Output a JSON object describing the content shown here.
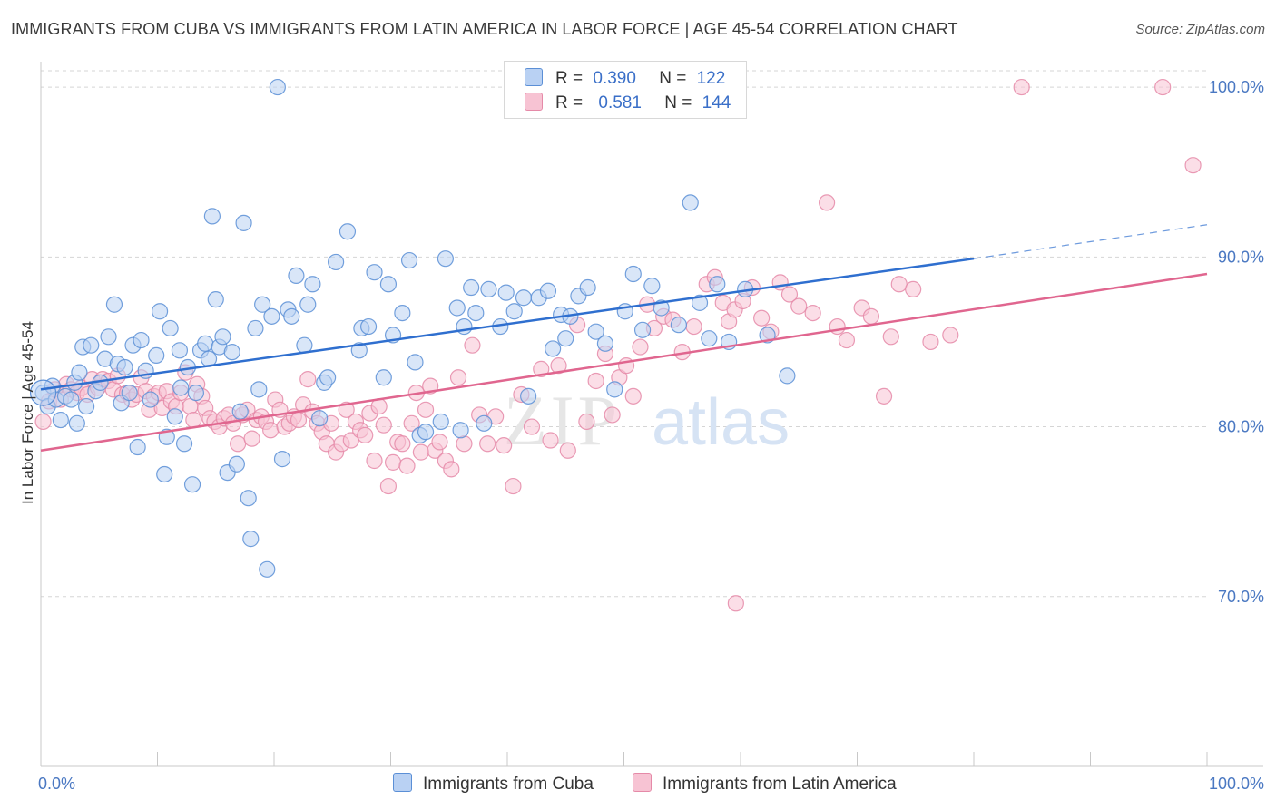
{
  "title": "IMMIGRANTS FROM CUBA VS IMMIGRANTS FROM LATIN AMERICA IN LABOR FORCE | AGE 45-54 CORRELATION CHART",
  "source": "Source: ZipAtlas.com",
  "colors": {
    "cuba_fill": "#b9d1f3",
    "cuba_stroke": "#5b8fd6",
    "cuba_line": "#2f6fcf",
    "latam_fill": "#f7c3d3",
    "latam_stroke": "#e58aa8",
    "latam_line": "#e0668f",
    "tick_text": "#4a78c2",
    "grid": "#d5d5d5"
  },
  "legend": {
    "rows": [
      {
        "r_label": "R =",
        "r_value": "0.390",
        "n_label": "N =",
        "n_value": "122"
      },
      {
        "r_label": "R =",
        "r_value": "0.581",
        "n_label": "N =",
        "n_value": "144"
      }
    ]
  },
  "chart_data": {
    "type": "scatter",
    "title": "IMMIGRANTS FROM CUBA VS IMMIGRANTS FROM LATIN AMERICA IN LABOR FORCE | AGE 45-54 CORRELATION CHART",
    "xlabel": "",
    "ylabel": "In Labor Force | Age 45-54",
    "xlim": [
      0,
      100
    ],
    "ylim": [
      60,
      101.5
    ],
    "x_tick_labels": [
      "0.0%",
      "100.0%"
    ],
    "y_ticks": [
      {
        "value": 70,
        "label": "70.0%"
      },
      {
        "value": 80,
        "label": "80.0%"
      },
      {
        "value": 90,
        "label": "90.0%"
      },
      {
        "value": 100,
        "label": "100.0%"
      }
    ],
    "grid": true,
    "legend_position": "top-center",
    "series": [
      {
        "name": "Immigrants from Cuba",
        "r": 0.39,
        "n": 122,
        "trend": {
          "x0": 0,
          "y0": 82.2,
          "x1": 80,
          "y1": 89.9,
          "dashed_to_x": 100,
          "dashed_to_y": 91.9
        },
        "points": [
          [
            0.2,
            82.0
          ],
          [
            0.6,
            81.2
          ],
          [
            1.0,
            82.4
          ],
          [
            1.3,
            81.6
          ],
          [
            1.7,
            80.4
          ],
          [
            2.1,
            81.8
          ],
          [
            2.6,
            81.6
          ],
          [
            2.9,
            82.6
          ],
          [
            3.1,
            80.2
          ],
          [
            3.3,
            83.2
          ],
          [
            3.6,
            84.7
          ],
          [
            3.9,
            81.2
          ],
          [
            4.3,
            84.8
          ],
          [
            4.7,
            82.1
          ],
          [
            5.1,
            82.6
          ],
          [
            5.5,
            84.0
          ],
          [
            5.8,
            85.3
          ],
          [
            6.3,
            87.2
          ],
          [
            6.6,
            83.7
          ],
          [
            6.9,
            81.4
          ],
          [
            7.2,
            83.5
          ],
          [
            7.6,
            82.0
          ],
          [
            7.9,
            84.8
          ],
          [
            8.3,
            78.8
          ],
          [
            8.6,
            85.1
          ],
          [
            9.0,
            83.3
          ],
          [
            9.4,
            81.6
          ],
          [
            9.9,
            84.2
          ],
          [
            10.2,
            86.8
          ],
          [
            10.6,
            77.2
          ],
          [
            10.8,
            79.4
          ],
          [
            11.1,
            85.8
          ],
          [
            11.5,
            80.6
          ],
          [
            11.9,
            84.5
          ],
          [
            12.3,
            79.0
          ],
          [
            12.6,
            83.5
          ],
          [
            13.0,
            76.6
          ],
          [
            13.3,
            82.0
          ],
          [
            13.7,
            84.5
          ],
          [
            14.1,
            84.9
          ],
          [
            14.4,
            84.0
          ],
          [
            14.7,
            92.4
          ],
          [
            15.0,
            87.5
          ],
          [
            15.3,
            84.7
          ],
          [
            15.6,
            85.3
          ],
          [
            16.0,
            77.3
          ],
          [
            16.4,
            84.4
          ],
          [
            16.8,
            77.8
          ],
          [
            17.1,
            80.9
          ],
          [
            17.4,
            92.0
          ],
          [
            17.8,
            75.8
          ],
          [
            18.0,
            73.4
          ],
          [
            18.4,
            85.8
          ],
          [
            18.7,
            82.2
          ],
          [
            19.0,
            87.2
          ],
          [
            19.4,
            71.6
          ],
          [
            19.8,
            86.5
          ],
          [
            20.3,
            100.0
          ],
          [
            20.7,
            78.1
          ],
          [
            21.2,
            86.9
          ],
          [
            21.5,
            86.5
          ],
          [
            21.9,
            88.9
          ],
          [
            22.6,
            84.8
          ],
          [
            22.9,
            87.2
          ],
          [
            23.3,
            88.4
          ],
          [
            23.9,
            80.5
          ],
          [
            24.3,
            82.6
          ],
          [
            24.6,
            82.9
          ],
          [
            25.3,
            89.7
          ],
          [
            26.3,
            91.5
          ],
          [
            27.3,
            84.5
          ],
          [
            27.5,
            85.8
          ],
          [
            28.1,
            85.9
          ],
          [
            28.6,
            89.1
          ],
          [
            29.8,
            88.4
          ],
          [
            30.2,
            85.4
          ],
          [
            31.0,
            86.7
          ],
          [
            31.6,
            89.8
          ],
          [
            32.1,
            83.8
          ],
          [
            32.5,
            79.5
          ],
          [
            33.0,
            79.7
          ],
          [
            34.3,
            80.3
          ],
          [
            34.7,
            89.9
          ],
          [
            35.7,
            87.0
          ],
          [
            36.3,
            85.9
          ],
          [
            36.9,
            88.2
          ],
          [
            37.3,
            86.7
          ],
          [
            38.0,
            80.2
          ],
          [
            38.4,
            88.1
          ],
          [
            39.4,
            85.9
          ],
          [
            39.9,
            87.9
          ],
          [
            40.6,
            86.8
          ],
          [
            41.4,
            87.6
          ],
          [
            41.8,
            81.8
          ],
          [
            42.7,
            87.6
          ],
          [
            43.5,
            88.0
          ],
          [
            43.9,
            84.6
          ],
          [
            44.6,
            86.6
          ],
          [
            45.4,
            86.5
          ],
          [
            46.1,
            87.7
          ],
          [
            46.9,
            88.2
          ],
          [
            47.6,
            85.6
          ],
          [
            48.4,
            84.9
          ],
          [
            49.2,
            82.2
          ],
          [
            50.1,
            86.8
          ],
          [
            50.8,
            89.0
          ],
          [
            51.6,
            85.7
          ],
          [
            52.4,
            88.3
          ],
          [
            53.2,
            87.0
          ],
          [
            54.7,
            86.0
          ],
          [
            55.7,
            93.2
          ],
          [
            56.5,
            87.3
          ],
          [
            57.3,
            85.2
          ],
          [
            58.0,
            88.4
          ],
          [
            59.0,
            85.0
          ],
          [
            60.4,
            88.1
          ],
          [
            62.3,
            85.4
          ],
          [
            64.0,
            83.0
          ],
          [
            29.4,
            82.9
          ],
          [
            36.0,
            79.8
          ],
          [
            12.0,
            82.3
          ],
          [
            45.0,
            85.2
          ]
        ]
      },
      {
        "name": "Immigrants from Latin America",
        "r": 0.581,
        "n": 144,
        "trend": {
          "x0": 0,
          "y0": 78.6,
          "x1": 100,
          "y1": 89.0
        },
        "points": [
          [
            0.2,
            80.3
          ],
          [
            0.7,
            81.5
          ],
          [
            1.2,
            82.2
          ],
          [
            1.7,
            81.6
          ],
          [
            2.2,
            82.5
          ],
          [
            2.6,
            82.2
          ],
          [
            3.1,
            82.0
          ],
          [
            3.5,
            82.3
          ],
          [
            4.0,
            81.9
          ],
          [
            4.4,
            82.8
          ],
          [
            4.9,
            82.3
          ],
          [
            5.3,
            82.8
          ],
          [
            5.8,
            82.7
          ],
          [
            6.2,
            82.2
          ],
          [
            6.6,
            83.0
          ],
          [
            7.0,
            81.9
          ],
          [
            7.4,
            82.0
          ],
          [
            7.8,
            81.6
          ],
          [
            8.2,
            81.9
          ],
          [
            8.6,
            82.9
          ],
          [
            9.0,
            82.1
          ],
          [
            9.3,
            81.0
          ],
          [
            9.7,
            81.8
          ],
          [
            10.1,
            82.0
          ],
          [
            10.4,
            81.1
          ],
          [
            10.8,
            82.1
          ],
          [
            11.2,
            81.5
          ],
          [
            11.6,
            81.2
          ],
          [
            12.0,
            82.0
          ],
          [
            12.4,
            83.2
          ],
          [
            12.8,
            81.2
          ],
          [
            13.1,
            80.4
          ],
          [
            13.4,
            82.5
          ],
          [
            13.8,
            81.8
          ],
          [
            14.1,
            81.1
          ],
          [
            14.5,
            80.5
          ],
          [
            14.9,
            80.3
          ],
          [
            15.3,
            80.0
          ],
          [
            15.7,
            80.5
          ],
          [
            16.1,
            80.7
          ],
          [
            16.5,
            80.2
          ],
          [
            16.9,
            79.0
          ],
          [
            17.3,
            80.7
          ],
          [
            17.7,
            81.0
          ],
          [
            18.1,
            79.3
          ],
          [
            18.5,
            80.4
          ],
          [
            18.9,
            80.6
          ],
          [
            19.3,
            80.3
          ],
          [
            19.7,
            79.8
          ],
          [
            20.1,
            81.6
          ],
          [
            20.5,
            81.0
          ],
          [
            20.9,
            80.0
          ],
          [
            21.3,
            80.2
          ],
          [
            21.7,
            80.6
          ],
          [
            22.1,
            80.4
          ],
          [
            22.5,
            81.3
          ],
          [
            22.9,
            82.8
          ],
          [
            23.3,
            80.9
          ],
          [
            23.7,
            80.2
          ],
          [
            24.1,
            79.7
          ],
          [
            24.5,
            79.0
          ],
          [
            24.9,
            80.2
          ],
          [
            25.3,
            78.5
          ],
          [
            25.8,
            79.0
          ],
          [
            26.2,
            81.0
          ],
          [
            26.6,
            79.2
          ],
          [
            27.0,
            80.3
          ],
          [
            27.4,
            79.8
          ],
          [
            27.8,
            79.5
          ],
          [
            28.2,
            80.8
          ],
          [
            28.6,
            78.0
          ],
          [
            29.0,
            81.2
          ],
          [
            29.4,
            80.1
          ],
          [
            29.8,
            76.5
          ],
          [
            30.2,
            77.9
          ],
          [
            30.6,
            79.1
          ],
          [
            31.0,
            79.0
          ],
          [
            31.4,
            77.7
          ],
          [
            31.8,
            80.2
          ],
          [
            32.2,
            82.0
          ],
          [
            32.6,
            78.5
          ],
          [
            33.0,
            81.0
          ],
          [
            33.4,
            82.4
          ],
          [
            33.8,
            78.6
          ],
          [
            34.2,
            79.1
          ],
          [
            34.7,
            78.0
          ],
          [
            35.2,
            77.5
          ],
          [
            35.8,
            82.9
          ],
          [
            36.3,
            79.0
          ],
          [
            37.0,
            84.8
          ],
          [
            37.6,
            80.7
          ],
          [
            38.3,
            79.0
          ],
          [
            39.0,
            80.6
          ],
          [
            39.7,
            78.9
          ],
          [
            40.5,
            76.5
          ],
          [
            41.2,
            81.9
          ],
          [
            42.1,
            80.0
          ],
          [
            42.9,
            83.4
          ],
          [
            43.7,
            79.2
          ],
          [
            44.4,
            83.6
          ],
          [
            45.2,
            78.6
          ],
          [
            46.0,
            86.0
          ],
          [
            46.8,
            80.3
          ],
          [
            47.6,
            82.7
          ],
          [
            48.4,
            84.3
          ],
          [
            49.0,
            80.7
          ],
          [
            49.6,
            82.9
          ],
          [
            50.2,
            83.6
          ],
          [
            50.8,
            81.8
          ],
          [
            51.4,
            84.7
          ],
          [
            52.0,
            87.2
          ],
          [
            52.6,
            85.8
          ],
          [
            53.4,
            86.5
          ],
          [
            54.2,
            86.3
          ],
          [
            55.0,
            84.4
          ],
          [
            56.0,
            85.9
          ],
          [
            57.1,
            88.4
          ],
          [
            57.8,
            88.8
          ],
          [
            58.5,
            87.3
          ],
          [
            59.0,
            86.2
          ],
          [
            59.5,
            86.9
          ],
          [
            60.2,
            87.4
          ],
          [
            61.0,
            88.2
          ],
          [
            61.8,
            86.4
          ],
          [
            62.6,
            85.6
          ],
          [
            63.4,
            88.5
          ],
          [
            64.2,
            87.8
          ],
          [
            65.0,
            87.1
          ],
          [
            66.2,
            86.7
          ],
          [
            67.4,
            93.2
          ],
          [
            68.3,
            85.9
          ],
          [
            69.1,
            85.1
          ],
          [
            70.4,
            87.0
          ],
          [
            71.2,
            86.5
          ],
          [
            72.3,
            81.8
          ],
          [
            72.9,
            85.3
          ],
          [
            73.6,
            88.4
          ],
          [
            74.8,
            88.1
          ],
          [
            76.3,
            85.0
          ],
          [
            78.0,
            85.4
          ],
          [
            84.1,
            100.0
          ],
          [
            96.2,
            100.0
          ],
          [
            98.8,
            95.4
          ],
          [
            59.6,
            69.6
          ]
        ]
      }
    ]
  },
  "watermark": {
    "part1": "ZIP",
    "part2": "atlas"
  },
  "bottom_legend": {
    "items": [
      "Immigrants from Cuba",
      "Immigrants from Latin America"
    ]
  }
}
